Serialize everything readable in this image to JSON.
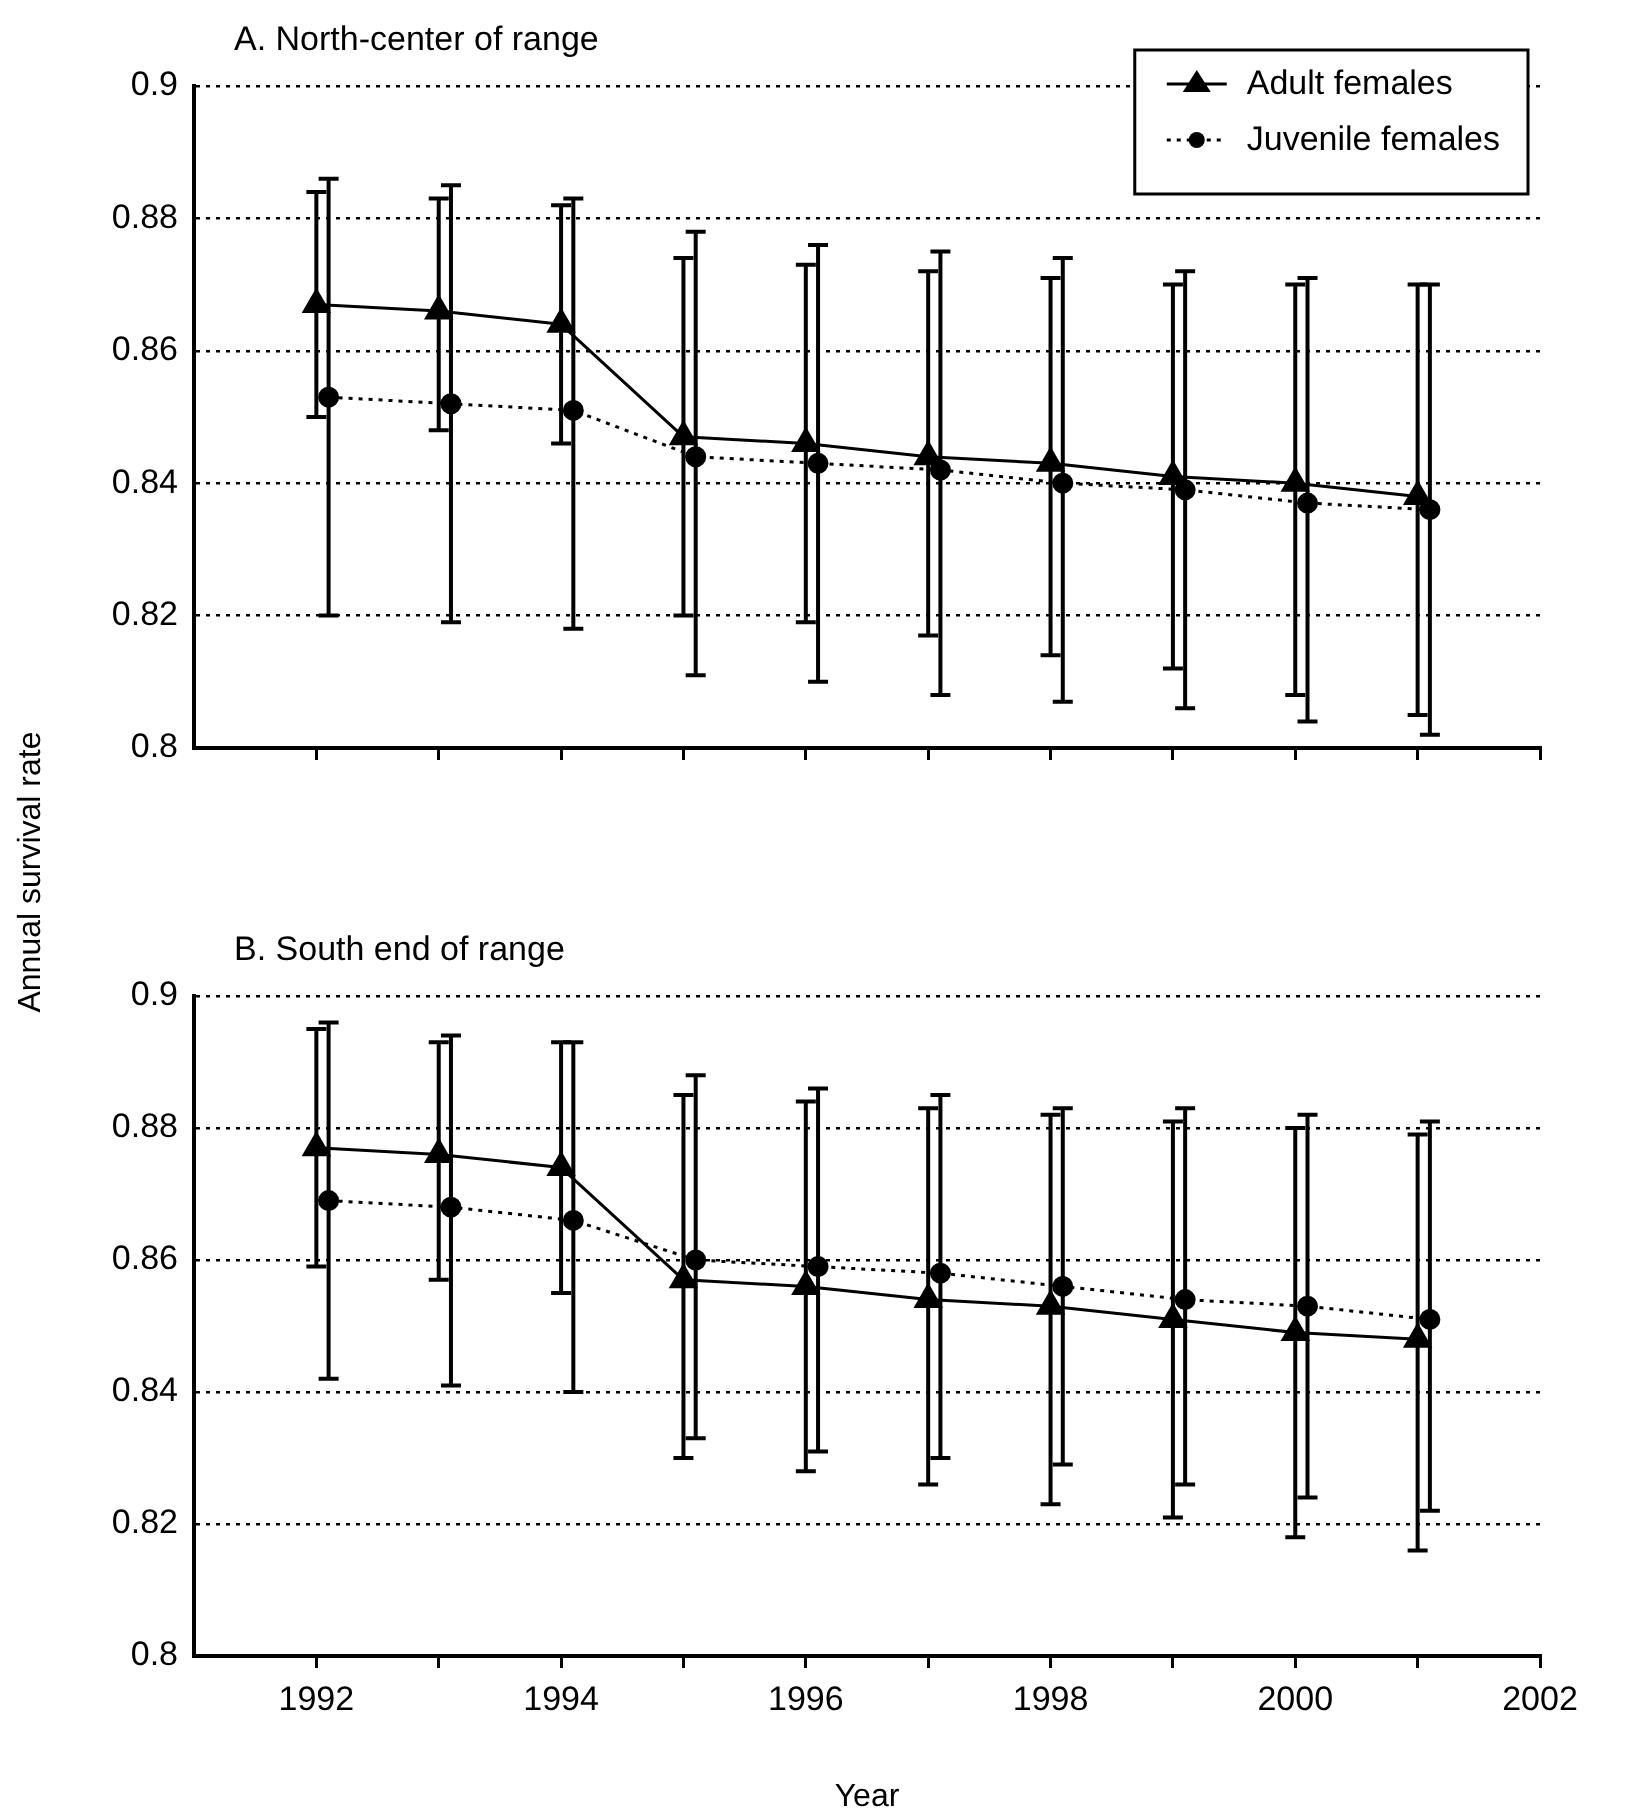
{
  "chart_data": [
    {
      "type": "line",
      "title": "A. North-center of range",
      "ylabel": "Annual survival rate",
      "x": [
        1992,
        1993,
        1994,
        1995,
        1996,
        1997,
        1998,
        1999,
        2000,
        2001
      ],
      "xlim": [
        1991,
        2002
      ],
      "xticks": [
        {
          "value": 1992,
          "label": null
        },
        {
          "value": 1993,
          "label": null
        },
        {
          "value": 1994,
          "label": null
        },
        {
          "value": 1995,
          "label": null
        },
        {
          "value": 1996,
          "label": null
        },
        {
          "value": 1997,
          "label": null
        },
        {
          "value": 1998,
          "label": null
        },
        {
          "value": 1999,
          "label": null
        },
        {
          "value": 2000,
          "label": null
        },
        {
          "value": 2001,
          "label": null
        },
        {
          "value": 2002,
          "label": null
        }
      ],
      "ylim": [
        0.8,
        0.9
      ],
      "yticks": [
        0.8,
        0.82,
        0.84,
        0.86,
        0.88,
        0.9
      ],
      "grid": "y",
      "legend": "top right",
      "tick_labels": "y",
      "series": [
        {
          "name": "Adult females",
          "color": "#000000",
          "marker": "triangle",
          "line_style": "solid",
          "values": [
            0.867,
            0.866,
            0.864,
            0.847,
            0.846,
            0.844,
            0.843,
            0.841,
            0.84,
            0.838
          ],
          "errors": [
            [
              0.85,
              0.884
            ],
            [
              0.848,
              0.883
            ],
            [
              0.846,
              0.882
            ],
            [
              0.82,
              0.874
            ],
            [
              0.819,
              0.873
            ],
            [
              0.817,
              0.872
            ],
            [
              0.814,
              0.871
            ],
            [
              0.812,
              0.87
            ],
            [
              0.808,
              0.87
            ],
            [
              0.805,
              0.87
            ]
          ]
        },
        {
          "name": "Juvenile females",
          "color": "#000000",
          "marker": "circle",
          "line_style": "dotted",
          "x": [
            1992.1,
            1993.1,
            1994.1,
            1995.1,
            1996.1,
            1997.1,
            1998.1,
            1999.1,
            2000.1,
            2001.1
          ],
          "values": [
            0.853,
            0.852,
            0.851,
            0.844,
            0.843,
            0.842,
            0.84,
            0.839,
            0.837,
            0.836
          ],
          "errors": [
            [
              0.82,
              0.886
            ],
            [
              0.819,
              0.885
            ],
            [
              0.818,
              0.883
            ],
            [
              0.811,
              0.878
            ],
            [
              0.81,
              0.876
            ],
            [
              0.808,
              0.875
            ],
            [
              0.807,
              0.874
            ],
            [
              0.806,
              0.872
            ],
            [
              0.804,
              0.871
            ],
            [
              0.802,
              0.87
            ]
          ]
        }
      ]
    },
    {
      "type": "line",
      "title": "B. South end of range",
      "xlabel": "Year",
      "x": [
        1992,
        1993,
        1994,
        1995,
        1996,
        1997,
        1998,
        1999,
        2000,
        2001
      ],
      "xlim": [
        1991,
        2002
      ],
      "xticks": [
        {
          "value": 1992,
          "label": "1992"
        },
        {
          "value": 1993,
          "label": null
        },
        {
          "value": 1994,
          "label": "1994"
        },
        {
          "value": 1995,
          "label": null
        },
        {
          "value": 1996,
          "label": "1996"
        },
        {
          "value": 1997,
          "label": null
        },
        {
          "value": 1998,
          "label": "1998"
        },
        {
          "value": 1999,
          "label": null
        },
        {
          "value": 2000,
          "label": "2000"
        },
        {
          "value": 2001,
          "label": null
        },
        {
          "value": 2002,
          "label": "2002"
        }
      ],
      "ylim": [
        0.8,
        0.9
      ],
      "yticks": [
        0.8,
        0.82,
        0.84,
        0.86,
        0.88,
        0.9
      ],
      "grid": "y",
      "series": [
        {
          "color": "#000000",
          "marker": "triangle",
          "line_style": "solid",
          "values": [
            0.877,
            0.876,
            0.874,
            0.857,
            0.856,
            0.854,
            0.853,
            0.851,
            0.849,
            0.848
          ],
          "errors": [
            [
              0.859,
              0.895
            ],
            [
              0.857,
              0.893
            ],
            [
              0.855,
              0.893
            ],
            [
              0.83,
              0.885
            ],
            [
              0.828,
              0.884
            ],
            [
              0.826,
              0.883
            ],
            [
              0.823,
              0.882
            ],
            [
              0.821,
              0.881
            ],
            [
              0.818,
              0.88
            ],
            [
              0.816,
              0.879
            ]
          ]
        },
        {
          "color": "#000000",
          "marker": "circle",
          "line_style": "dotted",
          "x": [
            1992.1,
            1993.1,
            1994.1,
            1995.1,
            1996.1,
            1997.1,
            1998.1,
            1999.1,
            2000.1,
            2001.1
          ],
          "values": [
            0.869,
            0.868,
            0.866,
            0.86,
            0.859,
            0.858,
            0.856,
            0.854,
            0.853,
            0.851
          ],
          "errors": [
            [
              0.842,
              0.896
            ],
            [
              0.841,
              0.894
            ],
            [
              0.84,
              0.893
            ],
            [
              0.833,
              0.888
            ],
            [
              0.831,
              0.886
            ],
            [
              0.83,
              0.885
            ],
            [
              0.829,
              0.883
            ],
            [
              0.826,
              0.883
            ],
            [
              0.824,
              0.882
            ],
            [
              0.822,
              0.881
            ]
          ]
        }
      ]
    }
  ]
}
